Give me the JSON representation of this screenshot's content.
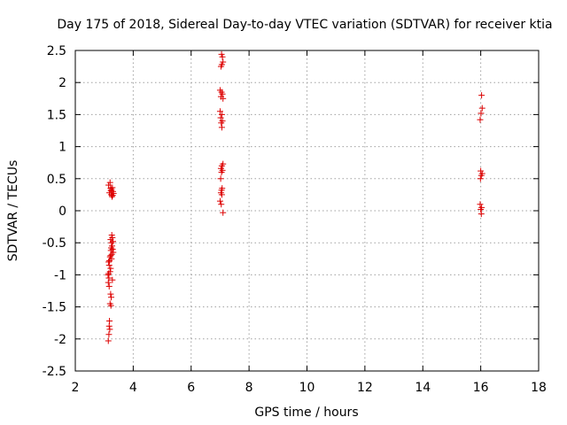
{
  "chart_data": {
    "type": "scatter",
    "title": "Day 175 of 2018, Sidereal Day-to-day VTEC variation (SDTVAR) for receiver ktia",
    "xlabel": "GPS time / hours",
    "ylabel": "SDTVAR / TECUs",
    "xlim": [
      2,
      18
    ],
    "ylim": [
      -2.5,
      2.5
    ],
    "xticks": [
      2,
      4,
      6,
      8,
      10,
      12,
      14,
      16,
      18
    ],
    "yticks": [
      -2.5,
      -2,
      -1.5,
      -1,
      -0.5,
      0,
      0.5,
      1,
      1.5,
      2,
      2.5
    ],
    "xtick_labels": [
      "2",
      "4",
      "6",
      "8",
      "10",
      "12",
      "14",
      "16",
      "18"
    ],
    "ytick_labels": [
      "-2.5",
      "-2",
      "-1.5",
      "-1",
      "-0.5",
      "0",
      "0.5",
      "1",
      "1.5",
      "2",
      "2.5"
    ],
    "grid": true,
    "marker": "+",
    "color": "#dd0000",
    "series": [
      {
        "name": "SDTVAR",
        "points": [
          [
            3.15,
            0.4
          ],
          [
            3.2,
            0.44
          ],
          [
            3.22,
            0.35
          ],
          [
            3.25,
            0.33
          ],
          [
            3.28,
            0.36
          ],
          [
            3.3,
            0.3
          ],
          [
            3.18,
            0.28
          ],
          [
            3.24,
            0.25
          ],
          [
            3.27,
            0.22
          ],
          [
            3.32,
            0.27
          ],
          [
            3.23,
            0.31
          ],
          [
            3.29,
            0.24
          ],
          [
            3.26,
            -0.38
          ],
          [
            3.28,
            -0.42
          ],
          [
            3.22,
            -0.45
          ],
          [
            3.3,
            -0.48
          ],
          [
            3.25,
            -0.5
          ],
          [
            3.27,
            -0.55
          ],
          [
            3.24,
            -0.58
          ],
          [
            3.29,
            -0.6
          ],
          [
            3.23,
            -0.62
          ],
          [
            3.31,
            -0.65
          ],
          [
            3.26,
            -0.68
          ],
          [
            3.22,
            -0.7
          ],
          [
            3.2,
            -0.72
          ],
          [
            3.25,
            -0.75
          ],
          [
            3.18,
            -0.78
          ],
          [
            3.15,
            -0.8
          ],
          [
            3.17,
            -0.85
          ],
          [
            3.22,
            -0.9
          ],
          [
            3.2,
            -0.95
          ],
          [
            3.15,
            -0.98
          ],
          [
            3.13,
            -1.0
          ],
          [
            3.16,
            -1.05
          ],
          [
            3.28,
            -1.08
          ],
          [
            3.14,
            -1.12
          ],
          [
            3.17,
            -1.18
          ],
          [
            3.22,
            -1.3
          ],
          [
            3.24,
            -1.35
          ],
          [
            3.2,
            -1.45
          ],
          [
            3.23,
            -1.48
          ],
          [
            3.18,
            -1.72
          ],
          [
            3.17,
            -1.8
          ],
          [
            3.19,
            -1.85
          ],
          [
            3.16,
            -1.93
          ],
          [
            3.14,
            -2.03
          ],
          [
            7.05,
            2.44
          ],
          [
            7.08,
            2.4
          ],
          [
            7.1,
            2.32
          ],
          [
            7.06,
            2.28
          ],
          [
            7.03,
            2.25
          ],
          [
            7.0,
            1.88
          ],
          [
            7.05,
            1.85
          ],
          [
            7.08,
            1.82
          ],
          [
            7.03,
            1.78
          ],
          [
            7.1,
            1.75
          ],
          [
            7.0,
            1.55
          ],
          [
            7.06,
            1.5
          ],
          [
            7.02,
            1.45
          ],
          [
            7.08,
            1.4
          ],
          [
            7.04,
            1.37
          ],
          [
            7.06,
            1.3
          ],
          [
            7.1,
            0.73
          ],
          [
            7.06,
            0.7
          ],
          [
            7.03,
            0.66
          ],
          [
            7.08,
            0.63
          ],
          [
            7.05,
            0.6
          ],
          [
            7.02,
            0.5
          ],
          [
            7.07,
            0.35
          ],
          [
            7.05,
            0.32
          ],
          [
            7.03,
            0.28
          ],
          [
            7.06,
            0.25
          ],
          [
            7.0,
            0.15
          ],
          [
            7.04,
            0.1
          ],
          [
            7.1,
            -0.03
          ],
          [
            16.03,
            1.8
          ],
          [
            16.05,
            1.6
          ],
          [
            16.01,
            1.52
          ],
          [
            15.98,
            1.42
          ],
          [
            16.0,
            0.62
          ],
          [
            16.05,
            0.58
          ],
          [
            16.02,
            0.55
          ],
          [
            15.99,
            0.5
          ],
          [
            15.98,
            0.1
          ],
          [
            16.03,
            0.05
          ],
          [
            16.0,
            0.02
          ],
          [
            16.02,
            -0.05
          ]
        ]
      }
    ]
  }
}
